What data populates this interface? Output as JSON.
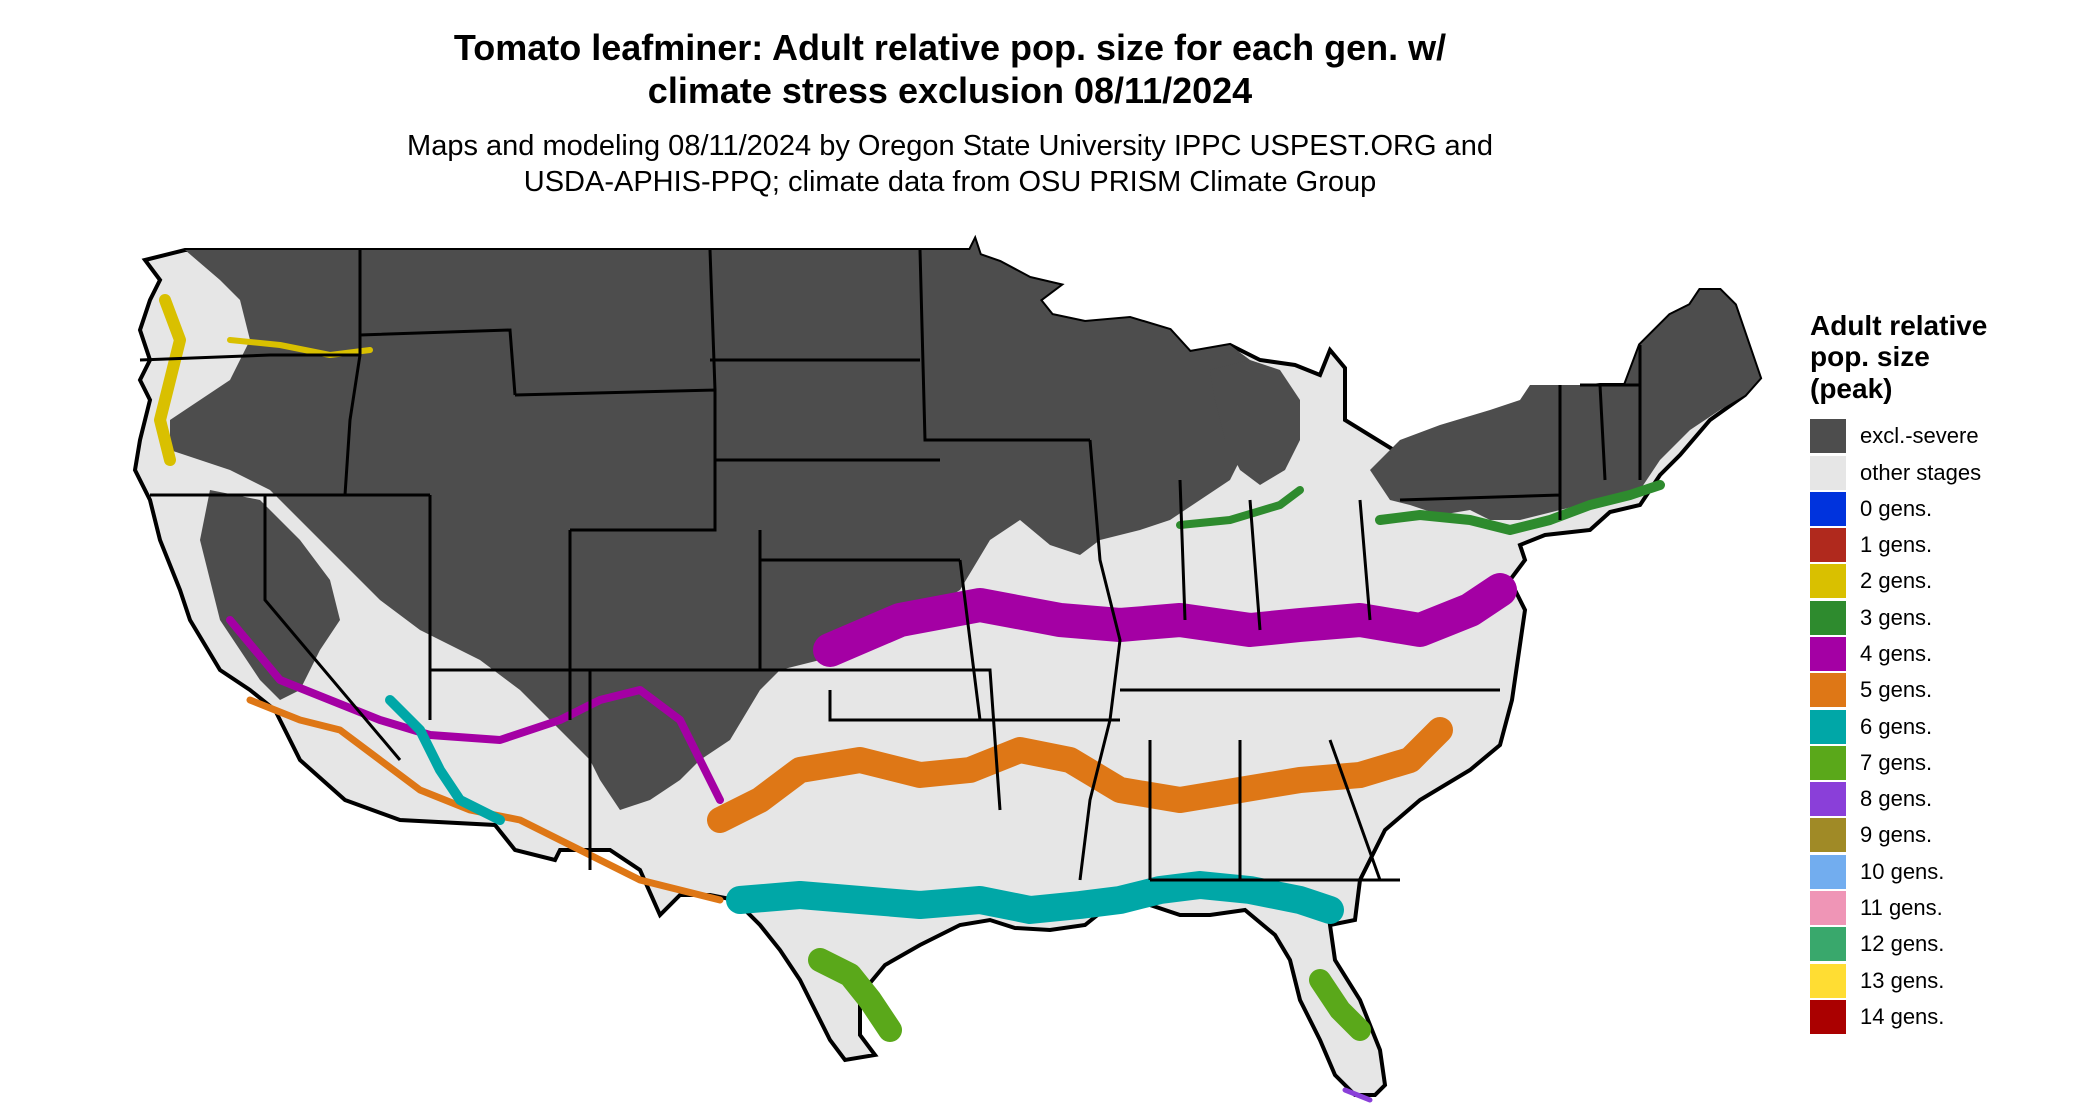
{
  "title": {
    "line1": "Tomato leafminer: Adult relative pop. size for each gen. w/",
    "line2": "climate stress exclusion 08/11/2024"
  },
  "subtitle": {
    "line1": "Maps and modeling 08/11/2024 by Oregon State University IPPC USPEST.ORG and",
    "line2": "USDA-APHIS-PPQ; climate data from OSU PRISM Climate Group"
  },
  "legend": {
    "title_lines": [
      "Adult relative",
      "pop. size",
      "(peak)"
    ],
    "items": [
      {
        "label": "excl.-severe",
        "color": "#4d4d4d"
      },
      {
        "label": "other stages",
        "color": "#e6e6e6"
      },
      {
        "label": "0 gens.",
        "color": "#0033dd"
      },
      {
        "label": "1 gens.",
        "color": "#b0291d"
      },
      {
        "label": "2 gens.",
        "color": "#d9c000"
      },
      {
        "label": "3 gens.",
        "color": "#2e8b2e"
      },
      {
        "label": "4 gens.",
        "color": "#a400a4"
      },
      {
        "label": "5 gens.",
        "color": "#de7716"
      },
      {
        "label": "6 gens.",
        "color": "#00a7a7"
      },
      {
        "label": "7 gens.",
        "color": "#5aa81a"
      },
      {
        "label": "8 gens.",
        "color": "#8a3fd9"
      },
      {
        "label": "9 gens.",
        "color": "#a08a26"
      },
      {
        "label": "10 gens.",
        "color": "#72adef"
      },
      {
        "label": "11 gens.",
        "color": "#ef95b6"
      },
      {
        "label": "12 gens.",
        "color": "#39a86c"
      },
      {
        "label": "13 gens.",
        "color": "#ffdd33"
      },
      {
        "label": "14 gens.",
        "color": "#aa0000"
      }
    ]
  },
  "map": {
    "background_color": "#e6e6e6",
    "border_color": "#000000"
  }
}
